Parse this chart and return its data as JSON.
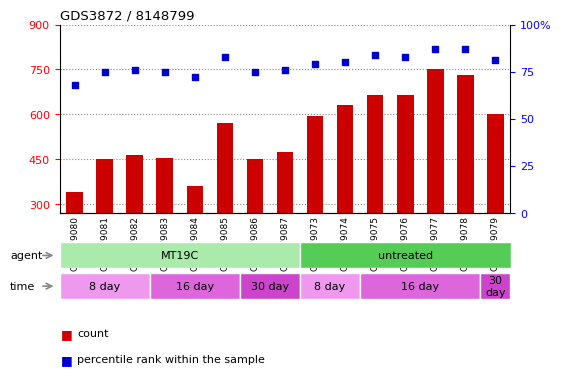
{
  "title": "GDS3872 / 8148799",
  "samples": [
    "GSM579080",
    "GSM579081",
    "GSM579082",
    "GSM579083",
    "GSM579084",
    "GSM579085",
    "GSM579086",
    "GSM579087",
    "GSM579073",
    "GSM579074",
    "GSM579075",
    "GSM579076",
    "GSM579077",
    "GSM579078",
    "GSM579079"
  ],
  "counts": [
    340,
    450,
    465,
    455,
    360,
    570,
    450,
    475,
    595,
    630,
    665,
    665,
    750,
    730,
    600
  ],
  "percentile": [
    68,
    75,
    76,
    75,
    72,
    83,
    75,
    76,
    79,
    80,
    84,
    83,
    87,
    87,
    81
  ],
  "bar_color": "#cc0000",
  "dot_color": "#0000cc",
  "ylim_left": [
    270,
    900
  ],
  "ylim_right": [
    0,
    100
  ],
  "yticks_left": [
    300,
    450,
    600,
    750,
    900
  ],
  "yticks_right": [
    0,
    25,
    50,
    75,
    100
  ],
  "ytick_right_labels": [
    "0",
    "25",
    "50",
    "75",
    "100%"
  ],
  "agent_groups": [
    {
      "label": "MT19C",
      "start": 0,
      "end": 8,
      "color": "#aaeaaa"
    },
    {
      "label": "untreated",
      "start": 8,
      "end": 15,
      "color": "#55cc55"
    }
  ],
  "time_groups": [
    {
      "label": "8 day",
      "start": 0,
      "end": 3,
      "color": "#ee99ee"
    },
    {
      "label": "16 day",
      "start": 3,
      "end": 6,
      "color": "#dd66dd"
    },
    {
      "label": "30 day",
      "start": 6,
      "end": 8,
      "color": "#cc44cc"
    },
    {
      "label": "8 day",
      "start": 8,
      "end": 10,
      "color": "#ee99ee"
    },
    {
      "label": "16 day",
      "start": 10,
      "end": 14,
      "color": "#dd66dd"
    },
    {
      "label": "30\nday",
      "start": 14,
      "end": 15,
      "color": "#cc44cc"
    }
  ],
  "legend_count_label": "count",
  "legend_pct_label": "percentile rank within the sample"
}
